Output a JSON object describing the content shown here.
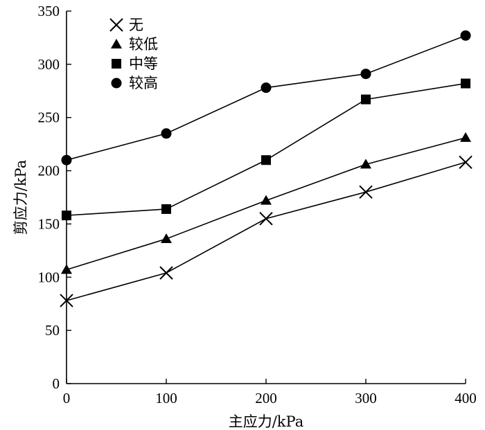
{
  "chart_data": {
    "type": "line",
    "title": "",
    "xlabel": "主应力/kPa",
    "ylabel": "剪应力/kPa",
    "x": [
      0,
      100,
      200,
      300,
      400
    ],
    "xlim": [
      0,
      400
    ],
    "ylim": [
      0,
      350
    ],
    "xticks": [
      0,
      100,
      200,
      300,
      400
    ],
    "yticks": [
      0,
      50,
      100,
      150,
      200,
      250,
      300,
      350
    ],
    "xtick_labels": [
      "0",
      "100",
      "200",
      "300",
      "400"
    ],
    "ytick_labels": [
      "0",
      "50",
      "100",
      "150",
      "200",
      "250",
      "300",
      "350"
    ],
    "grid": false,
    "legend_position": "top-left",
    "series": [
      {
        "name": "无",
        "marker": "x",
        "values": [
          78,
          104,
          155,
          180,
          208
        ]
      },
      {
        "name": "较低",
        "marker": "triangle",
        "values": [
          107,
          136,
          172,
          206,
          231
        ]
      },
      {
        "name": "中等",
        "marker": "square",
        "values": [
          158,
          164,
          210,
          267,
          282
        ]
      },
      {
        "name": "较高",
        "marker": "circle",
        "values": [
          210,
          235,
          278,
          291,
          327
        ]
      }
    ],
    "colors": {
      "line": "#000000",
      "background": "#ffffff"
    }
  }
}
